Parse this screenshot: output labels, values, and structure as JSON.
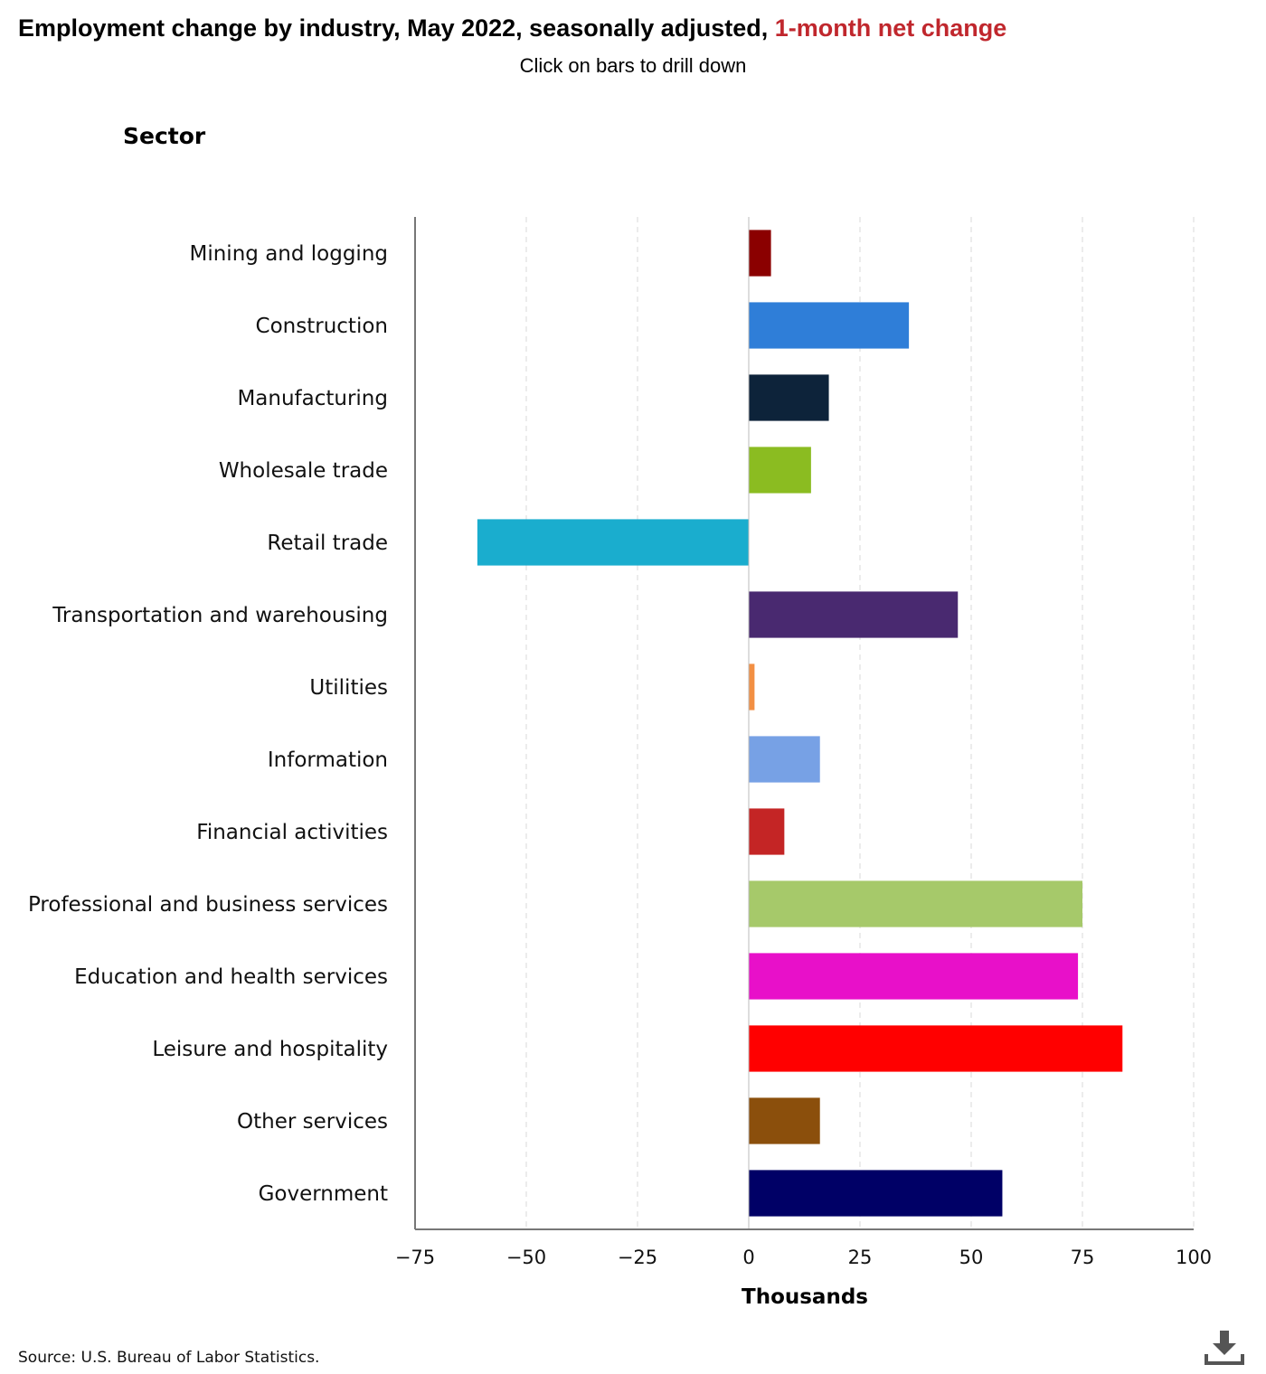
{
  "header": {
    "title_main": "Employment change by industry, May 2022, seasonally adjusted, ",
    "title_accent": "1-month net change",
    "subtitle": "Click on bars to drill down",
    "sector_label": "Sector"
  },
  "footer": {
    "source": "Source: U.S. Bureau of Labor Statistics.",
    "download_icon": "download-icon"
  },
  "colors": {
    "accent": "#c0272d",
    "grid": "#d9d9d9",
    "axis": "#777777"
  },
  "chart_data": {
    "type": "bar",
    "orientation": "horizontal",
    "title": "Employment change by industry, May 2022, seasonally adjusted, 1-month net change",
    "ylabel": "Sector",
    "xlabel": "Thousands",
    "xlim": [
      -75,
      100
    ],
    "xticks": [
      -75,
      -50,
      -25,
      0,
      25,
      50,
      75,
      100
    ],
    "xtick_labels": [
      "−75",
      "−50",
      "−25",
      "0",
      "25",
      "50",
      "75",
      "100"
    ],
    "grid": "vertical dashed",
    "categories": [
      "Mining and logging",
      "Construction",
      "Manufacturing",
      "Wholesale trade",
      "Retail trade",
      "Transportation and warehousing",
      "Utilities",
      "Information",
      "Financial activities",
      "Professional and business services",
      "Education and health services",
      "Leisure and hospitality",
      "Other services",
      "Government"
    ],
    "values": [
      5,
      36,
      18,
      14,
      -61,
      47,
      1.3,
      16,
      8,
      75,
      74,
      84,
      16,
      57
    ],
    "bar_colors": [
      "#8b0000",
      "#2f7ed8",
      "#0d233a",
      "#8bbc21",
      "#1aadce",
      "#492970",
      "#f28f43",
      "#77a1e5",
      "#c42525",
      "#a6c96a",
      "#e810c9",
      "#ff0000",
      "#8b4f0c",
      "#000066"
    ]
  }
}
